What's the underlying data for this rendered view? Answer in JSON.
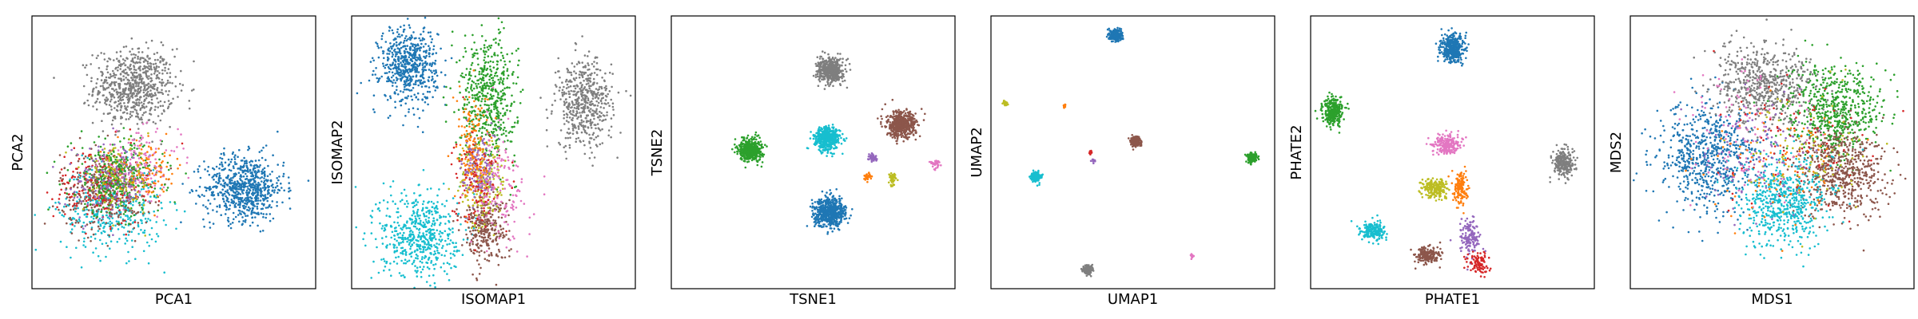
{
  "palette": {
    "blue": "#1f77b4",
    "orange": "#ff7f0e",
    "green": "#2ca02c",
    "red": "#d62728",
    "purple": "#9467bd",
    "brown": "#8c564b",
    "pink": "#e377c2",
    "gray": "#7f7f7f",
    "olive": "#bcbd22",
    "cyan": "#17becf"
  },
  "chart_data": [
    {
      "type": "scatter",
      "title": "",
      "xlabel": "PCA1",
      "ylabel": "PCA2",
      "xlim": [
        0,
        1
      ],
      "ylim": [
        0,
        1
      ],
      "grid": false,
      "legend": "none",
      "ticks": "hidden",
      "clusters": [
        {
          "color": "gray",
          "cx": 0.36,
          "cy": 0.74,
          "sx": 0.07,
          "sy": 0.07,
          "n": 700
        },
        {
          "color": "blue",
          "cx": 0.75,
          "cy": 0.37,
          "sx": 0.07,
          "sy": 0.06,
          "n": 700
        },
        {
          "color": "cyan",
          "cx": 0.28,
          "cy": 0.29,
          "sx": 0.09,
          "sy": 0.08,
          "n": 380
        },
        {
          "color": "brown",
          "cx": 0.26,
          "cy": 0.36,
          "sx": 0.08,
          "sy": 0.07,
          "n": 380
        },
        {
          "color": "red",
          "cx": 0.24,
          "cy": 0.38,
          "sx": 0.08,
          "sy": 0.07,
          "n": 200
        },
        {
          "color": "green",
          "cx": 0.3,
          "cy": 0.41,
          "sx": 0.08,
          "sy": 0.07,
          "n": 320
        },
        {
          "color": "pink",
          "cx": 0.38,
          "cy": 0.45,
          "sx": 0.07,
          "sy": 0.06,
          "n": 150
        },
        {
          "color": "olive",
          "cx": 0.3,
          "cy": 0.4,
          "sx": 0.06,
          "sy": 0.06,
          "n": 120
        },
        {
          "color": "purple",
          "cx": 0.26,
          "cy": 0.38,
          "sx": 0.07,
          "sy": 0.07,
          "n": 120
        },
        {
          "color": "orange",
          "cx": 0.42,
          "cy": 0.44,
          "sx": 0.06,
          "sy": 0.05,
          "n": 80
        }
      ]
    },
    {
      "type": "scatter",
      "title": "",
      "xlabel": "ISOMAP1",
      "ylabel": "ISOMAP2",
      "xlim": [
        0,
        1
      ],
      "ylim": [
        0,
        1
      ],
      "grid": false,
      "legend": "none",
      "ticks": "hidden",
      "clusters": [
        {
          "color": "blue",
          "cx": 0.2,
          "cy": 0.82,
          "sx": 0.05,
          "sy": 0.07,
          "n": 600
        },
        {
          "color": "gray",
          "cx": 0.82,
          "cy": 0.68,
          "sx": 0.05,
          "sy": 0.08,
          "n": 500
        },
        {
          "color": "green",
          "cx": 0.48,
          "cy": 0.7,
          "sx": 0.05,
          "sy": 0.12,
          "n": 550
        },
        {
          "color": "cyan",
          "cx": 0.24,
          "cy": 0.2,
          "sx": 0.07,
          "sy": 0.08,
          "n": 550
        },
        {
          "color": "brown",
          "cx": 0.47,
          "cy": 0.22,
          "sx": 0.04,
          "sy": 0.06,
          "n": 300
        },
        {
          "color": "olive",
          "cx": 0.46,
          "cy": 0.38,
          "sx": 0.04,
          "sy": 0.08,
          "n": 200
        },
        {
          "color": "purple",
          "cx": 0.45,
          "cy": 0.44,
          "sx": 0.03,
          "sy": 0.07,
          "n": 150
        },
        {
          "color": "orange",
          "cx": 0.43,
          "cy": 0.52,
          "sx": 0.03,
          "sy": 0.1,
          "n": 150
        },
        {
          "color": "pink",
          "cx": 0.52,
          "cy": 0.36,
          "sx": 0.05,
          "sy": 0.1,
          "n": 150
        },
        {
          "color": "red",
          "cx": 0.44,
          "cy": 0.4,
          "sx": 0.04,
          "sy": 0.09,
          "n": 100
        }
      ]
    },
    {
      "type": "scatter",
      "title": "",
      "xlabel": "TSNE1",
      "ylabel": "TSNE2",
      "xlim": [
        0,
        1
      ],
      "ylim": [
        0,
        1
      ],
      "grid": false,
      "legend": "none",
      "ticks": "hidden",
      "clusters": [
        {
          "color": "gray",
          "cx": 0.56,
          "cy": 0.8,
          "sx": 0.022,
          "sy": 0.022,
          "n": 500
        },
        {
          "color": "green",
          "cx": 0.28,
          "cy": 0.51,
          "sx": 0.02,
          "sy": 0.02,
          "n": 500
        },
        {
          "color": "cyan",
          "cx": 0.55,
          "cy": 0.55,
          "sx": 0.022,
          "sy": 0.022,
          "n": 500
        },
        {
          "color": "brown",
          "cx": 0.81,
          "cy": 0.6,
          "sx": 0.026,
          "sy": 0.024,
          "n": 500
        },
        {
          "color": "blue",
          "cx": 0.56,
          "cy": 0.28,
          "sx": 0.028,
          "sy": 0.026,
          "n": 600
        },
        {
          "color": "purple",
          "cx": 0.71,
          "cy": 0.48,
          "sx": 0.008,
          "sy": 0.008,
          "n": 40
        },
        {
          "color": "orange",
          "cx": 0.69,
          "cy": 0.41,
          "sx": 0.006,
          "sy": 0.008,
          "n": 30
        },
        {
          "color": "olive",
          "cx": 0.78,
          "cy": 0.4,
          "sx": 0.008,
          "sy": 0.01,
          "n": 50
        },
        {
          "color": "pink",
          "cx": 0.93,
          "cy": 0.46,
          "sx": 0.008,
          "sy": 0.008,
          "n": 40
        }
      ]
    },
    {
      "type": "scatter",
      "title": "",
      "xlabel": "UMAP1",
      "ylabel": "UMAP2",
      "xlim": [
        0,
        1
      ],
      "ylim": [
        0,
        1
      ],
      "grid": false,
      "legend": "none",
      "ticks": "hidden",
      "clusters": [
        {
          "color": "blue",
          "cx": 0.44,
          "cy": 0.93,
          "sx": 0.01,
          "sy": 0.01,
          "n": 300
        },
        {
          "color": "green",
          "cx": 0.92,
          "cy": 0.48,
          "sx": 0.008,
          "sy": 0.008,
          "n": 200
        },
        {
          "color": "brown",
          "cx": 0.51,
          "cy": 0.54,
          "sx": 0.008,
          "sy": 0.008,
          "n": 200
        },
        {
          "color": "cyan",
          "cx": 0.16,
          "cy": 0.41,
          "sx": 0.008,
          "sy": 0.008,
          "n": 200
        },
        {
          "color": "gray",
          "cx": 0.34,
          "cy": 0.07,
          "sx": 0.008,
          "sy": 0.008,
          "n": 200
        },
        {
          "color": "olive",
          "cx": 0.05,
          "cy": 0.68,
          "sx": 0.004,
          "sy": 0.004,
          "n": 25
        },
        {
          "color": "orange",
          "cx": 0.26,
          "cy": 0.67,
          "sx": 0.003,
          "sy": 0.003,
          "n": 12
        },
        {
          "color": "red",
          "cx": 0.35,
          "cy": 0.5,
          "sx": 0.003,
          "sy": 0.004,
          "n": 10
        },
        {
          "color": "purple",
          "cx": 0.36,
          "cy": 0.47,
          "sx": 0.003,
          "sy": 0.003,
          "n": 12
        },
        {
          "color": "pink",
          "cx": 0.71,
          "cy": 0.12,
          "sx": 0.004,
          "sy": 0.004,
          "n": 20
        }
      ]
    },
    {
      "type": "scatter",
      "title": "",
      "xlabel": "PHATE1",
      "ylabel": "PHATE2",
      "xlim": [
        0,
        1
      ],
      "ylim": [
        0,
        1
      ],
      "grid": false,
      "legend": "none",
      "ticks": "hidden",
      "clusters": [
        {
          "color": "blue",
          "cx": 0.5,
          "cy": 0.88,
          "sx": 0.02,
          "sy": 0.025,
          "n": 400
        },
        {
          "color": "green",
          "cx": 0.08,
          "cy": 0.65,
          "sx": 0.018,
          "sy": 0.025,
          "n": 300
        },
        {
          "color": "gray",
          "cx": 0.89,
          "cy": 0.46,
          "sx": 0.018,
          "sy": 0.025,
          "n": 250
        },
        {
          "color": "pink",
          "cx": 0.48,
          "cy": 0.53,
          "sx": 0.025,
          "sy": 0.018,
          "n": 220
        },
        {
          "color": "olive",
          "cx": 0.44,
          "cy": 0.37,
          "sx": 0.022,
          "sy": 0.018,
          "n": 200
        },
        {
          "color": "orange",
          "cx": 0.53,
          "cy": 0.37,
          "sx": 0.012,
          "sy": 0.03,
          "n": 150
        },
        {
          "color": "cyan",
          "cx": 0.22,
          "cy": 0.21,
          "sx": 0.022,
          "sy": 0.018,
          "n": 200
        },
        {
          "color": "brown",
          "cx": 0.41,
          "cy": 0.12,
          "sx": 0.022,
          "sy": 0.016,
          "n": 200
        },
        {
          "color": "purple",
          "cx": 0.56,
          "cy": 0.19,
          "sx": 0.018,
          "sy": 0.035,
          "n": 150
        },
        {
          "color": "red",
          "cx": 0.59,
          "cy": 0.09,
          "sx": 0.02,
          "sy": 0.022,
          "n": 100
        }
      ]
    },
    {
      "type": "scatter",
      "title": "",
      "xlabel": "MDS1",
      "ylabel": "MDS2",
      "xlim": [
        0,
        1
      ],
      "ylim": [
        0,
        1
      ],
      "grid": false,
      "legend": "none",
      "ticks": "hidden",
      "clusters": [
        {
          "color": "blue",
          "cx": 0.28,
          "cy": 0.48,
          "sx": 0.09,
          "sy": 0.1,
          "n": 700
        },
        {
          "color": "gray",
          "cx": 0.48,
          "cy": 0.75,
          "sx": 0.09,
          "sy": 0.07,
          "n": 600
        },
        {
          "color": "green",
          "cx": 0.72,
          "cy": 0.65,
          "sx": 0.08,
          "sy": 0.08,
          "n": 600
        },
        {
          "color": "brown",
          "cx": 0.74,
          "cy": 0.43,
          "sx": 0.08,
          "sy": 0.08,
          "n": 600
        },
        {
          "color": "cyan",
          "cx": 0.55,
          "cy": 0.32,
          "sx": 0.08,
          "sy": 0.08,
          "n": 600
        },
        {
          "color": "pink",
          "cx": 0.4,
          "cy": 0.55,
          "sx": 0.1,
          "sy": 0.12,
          "n": 120
        },
        {
          "color": "red",
          "cx": 0.55,
          "cy": 0.55,
          "sx": 0.12,
          "sy": 0.12,
          "n": 90
        },
        {
          "color": "orange",
          "cx": 0.5,
          "cy": 0.45,
          "sx": 0.12,
          "sy": 0.12,
          "n": 90
        },
        {
          "color": "olive",
          "cx": 0.6,
          "cy": 0.5,
          "sx": 0.12,
          "sy": 0.12,
          "n": 90
        },
        {
          "color": "purple",
          "cx": 0.45,
          "cy": 0.5,
          "sx": 0.12,
          "sy": 0.12,
          "n": 90
        }
      ]
    }
  ]
}
